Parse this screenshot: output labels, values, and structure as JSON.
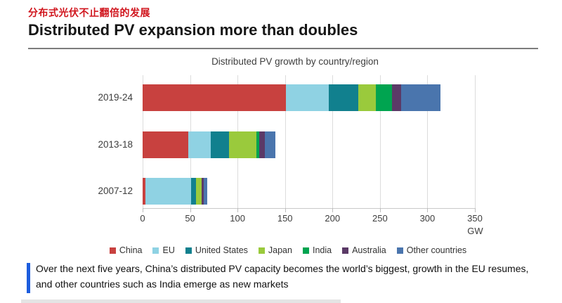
{
  "page": {
    "subtitle_cn": "分布式光伏不止翻倍的发展",
    "title": "Distributed PV expansion more than doubles"
  },
  "chart_data": {
    "type": "bar",
    "orientation": "horizontal",
    "stacked": true,
    "title": "Distributed PV growth by country/region",
    "unit": "GW",
    "categories": [
      "2019-24",
      "2013-18",
      "2007-12"
    ],
    "series": [
      {
        "name": "China",
        "color": "#c8413f",
        "values": [
          151,
          48,
          3
        ]
      },
      {
        "name": "EU",
        "color": "#8fd2e3",
        "values": [
          45,
          24,
          48
        ]
      },
      {
        "name": "United States",
        "color": "#11808e",
        "values": [
          31,
          19,
          5
        ]
      },
      {
        "name": "Japan",
        "color": "#9aca3c",
        "values": [
          19,
          29,
          6
        ]
      },
      {
        "name": "India",
        "color": "#00a450",
        "values": [
          17,
          3,
          0.5
        ]
      },
      {
        "name": "Australia",
        "color": "#5b3a67",
        "values": [
          9,
          6,
          2
        ]
      },
      {
        "name": "Other countries",
        "color": "#4a75ad",
        "values": [
          42,
          11,
          3.5
        ]
      }
    ],
    "xlim": [
      0,
      350
    ],
    "xticks": [
      0,
      50,
      100,
      150,
      200,
      250,
      300,
      350
    ],
    "grid": true,
    "legend_position": "bottom"
  },
  "caption": {
    "text": "Over the next five years, China’s distributed PV capacity becomes the world’s biggest, growth in the EU resumes, and other countries such as India emerge as new markets",
    "accent_color": "#1d5dde"
  }
}
